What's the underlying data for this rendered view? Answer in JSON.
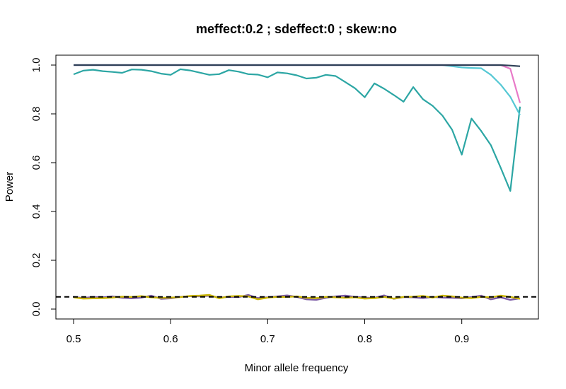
{
  "chart_data": {
    "type": "line",
    "title": "meffect:0.2 ; sdeffect:0 ; skew:no",
    "xlabel": "Minor allele frequency",
    "ylabel": "Power",
    "xlim": [
      0.5,
      0.96
    ],
    "ylim": [
      0,
      1
    ],
    "xticks": [
      "0.5",
      "0.6",
      "0.7",
      "0.8",
      "0.9"
    ],
    "yticks": [
      "0.0",
      "0.2",
      "0.4",
      "0.6",
      "0.8",
      "1.0"
    ],
    "grid": false,
    "legend": "none",
    "x": [
      0.5,
      0.51,
      0.52,
      0.53,
      0.54,
      0.55,
      0.56,
      0.57,
      0.58,
      0.59,
      0.6,
      0.61,
      0.62,
      0.63,
      0.64,
      0.65,
      0.66,
      0.67,
      0.68,
      0.69,
      0.7,
      0.71,
      0.72,
      0.73,
      0.74,
      0.75,
      0.76,
      0.77,
      0.78,
      0.79,
      0.8,
      0.81,
      0.82,
      0.83,
      0.84,
      0.85,
      0.86,
      0.87,
      0.88,
      0.89,
      0.9,
      0.91,
      0.92,
      0.93,
      0.94,
      0.95,
      0.96
    ],
    "reference_line": {
      "y": 0.05,
      "style": "dashed",
      "color": "#000000"
    },
    "series": [
      {
        "color": "#2ca6a4",
        "values": [
          0.962,
          0.977,
          0.981,
          0.975,
          0.972,
          0.968,
          0.982,
          0.981,
          0.975,
          0.965,
          0.96,
          0.983,
          0.978,
          0.969,
          0.96,
          0.963,
          0.979,
          0.973,
          0.963,
          0.961,
          0.95,
          0.97,
          0.966,
          0.958,
          0.945,
          0.948,
          0.96,
          0.955,
          0.93,
          0.905,
          0.868,
          0.925,
          0.903,
          0.877,
          0.85,
          0.91,
          0.86,
          0.833,
          0.793,
          0.735,
          0.633,
          0.781,
          0.73,
          0.672,
          0.58,
          0.484,
          0.83
        ]
      },
      {
        "color": "#55c8d4",
        "values": [
          1,
          1,
          1,
          1,
          1,
          1,
          1,
          1,
          1,
          1,
          1,
          1,
          1,
          1,
          1,
          1,
          1,
          1,
          1,
          1,
          1,
          1,
          1,
          1,
          1,
          1,
          1,
          1,
          1,
          1,
          1,
          1,
          1,
          1,
          1,
          1,
          1,
          1,
          1,
          0.995,
          0.99,
          0.988,
          0.987,
          0.96,
          0.92,
          0.87,
          0.795
        ]
      },
      {
        "color": "#e87ac8",
        "values": [
          1,
          1,
          1,
          1,
          1,
          1,
          1,
          1,
          1,
          1,
          1,
          1,
          1,
          1,
          1,
          1,
          1,
          1,
          1,
          1,
          1,
          1,
          1,
          1,
          1,
          1,
          1,
          1,
          1,
          1,
          1,
          1,
          1,
          1,
          1,
          1,
          1,
          1,
          1,
          1,
          1,
          1,
          1,
          1,
          1,
          0.985,
          0.845
        ]
      },
      {
        "color": "#2e4057",
        "values": [
          1,
          1,
          1,
          1,
          1,
          1,
          1,
          1,
          1,
          1,
          1,
          1,
          1,
          1,
          1,
          1,
          1,
          1,
          1,
          1,
          1,
          1,
          1,
          1,
          1,
          1,
          1,
          1,
          1,
          1,
          1,
          1,
          1,
          1,
          1,
          1,
          1,
          1,
          1,
          1,
          1,
          1,
          1,
          1,
          1,
          0.998,
          0.995
        ]
      },
      {
        "color": "#7b5aa6",
        "values": [
          0.05,
          0.045,
          0.05,
          0.048,
          0.052,
          0.046,
          0.044,
          0.047,
          0.055,
          0.042,
          0.044,
          0.05,
          0.053,
          0.052,
          0.055,
          0.047,
          0.05,
          0.049,
          0.058,
          0.045,
          0.048,
          0.052,
          0.056,
          0.05,
          0.04,
          0.038,
          0.046,
          0.052,
          0.055,
          0.05,
          0.047,
          0.046,
          0.056,
          0.042,
          0.049,
          0.048,
          0.045,
          0.05,
          0.047,
          0.046,
          0.044,
          0.049,
          0.055,
          0.04,
          0.048,
          0.038,
          0.044
        ]
      },
      {
        "color": "#c8b400",
        "values": [
          0.048,
          0.043,
          0.044,
          0.045,
          0.047,
          0.051,
          0.05,
          0.053,
          0.048,
          0.046,
          0.047,
          0.049,
          0.054,
          0.055,
          0.058,
          0.044,
          0.052,
          0.054,
          0.052,
          0.04,
          0.047,
          0.05,
          0.05,
          0.052,
          0.046,
          0.045,
          0.05,
          0.048,
          0.046,
          0.048,
          0.043,
          0.045,
          0.05,
          0.043,
          0.05,
          0.051,
          0.054,
          0.047,
          0.055,
          0.052,
          0.047,
          0.045,
          0.05,
          0.048,
          0.055,
          0.05,
          0.042
        ]
      }
    ]
  }
}
